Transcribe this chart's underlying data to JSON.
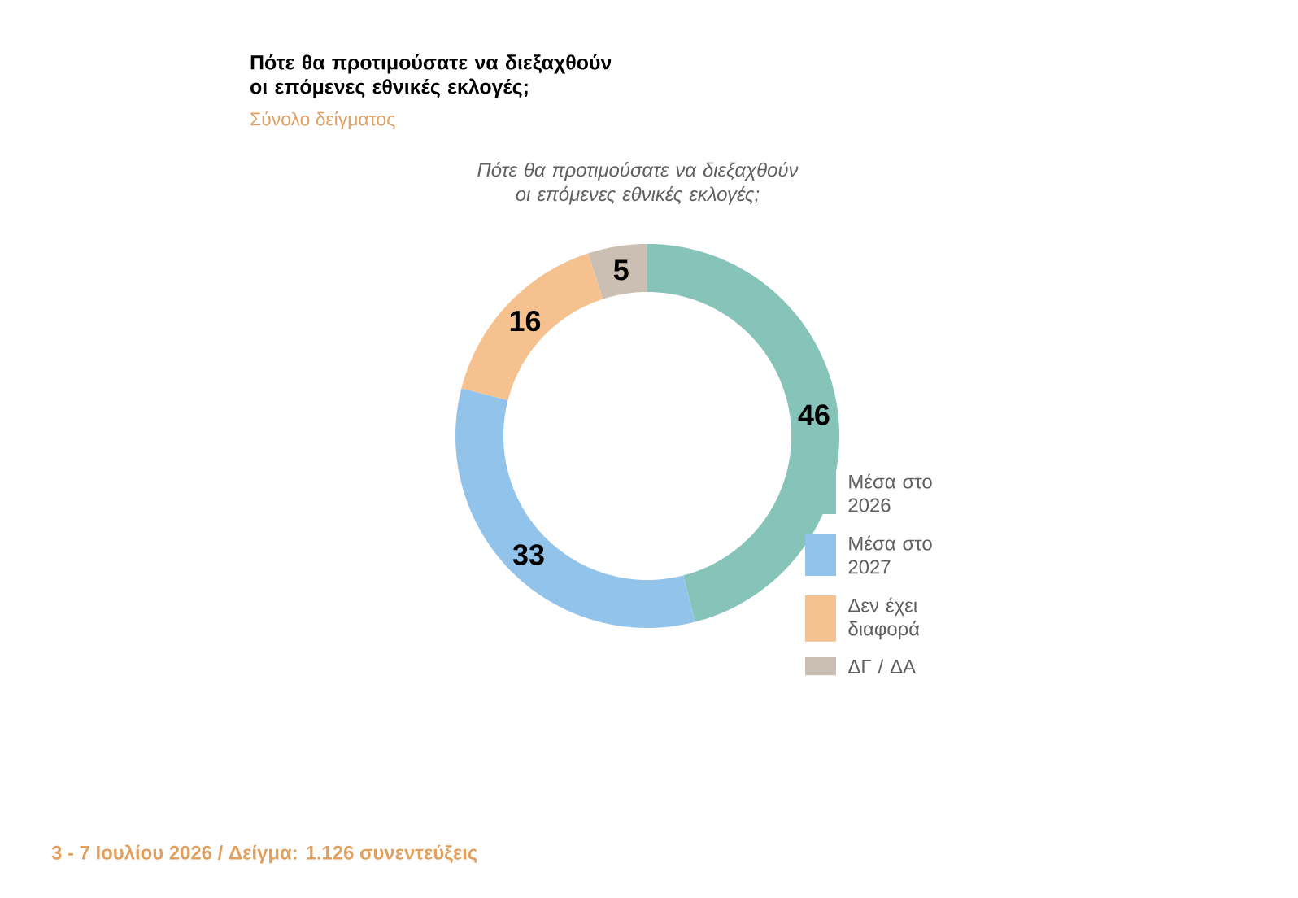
{
  "chart_data": {
    "type": "donut",
    "title": "Πότε θα προτιμούσατε να διεξαχθούν οι επόμενες εθνικές εκλογές;",
    "subtitle": "Σύνολο δείγματος",
    "categories": [
      "Μέσα στο 2026",
      "Μέσα στο 2027",
      "Δεν έχει διαφορά",
      "ΔΓ / ΔΑ"
    ],
    "values": [
      46,
      33,
      16,
      5
    ],
    "colors": [
      "#86c3b8",
      "#92c3ea",
      "#f4c18f",
      "#cbbfb3"
    ],
    "data_labels": true,
    "legend": "right",
    "annotations": [
      "Πότε θα προτιμούσατε να διεξαχθούν οι επόμενες εθνικές εκλογές;",
      "3 - 7 Ιουλίου 2026  /  Δείγμα:  1.126 συνεντεύξεις"
    ]
  }
}
